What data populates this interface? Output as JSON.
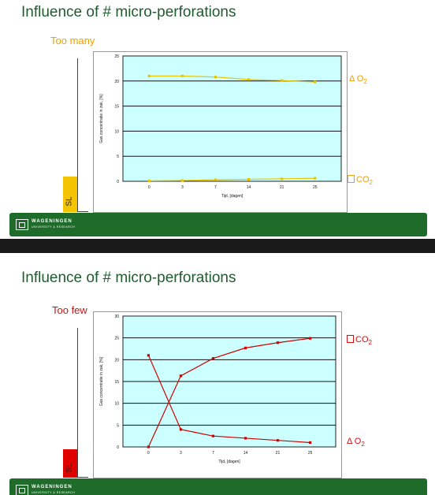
{
  "slides": [
    {
      "title": "Influence of # micro-perforations",
      "subtitle": "Too many",
      "subtitle_color": "#f0a000",
      "sl_label": "SL",
      "sl_color": "#f5c400",
      "right_labels": {
        "top": "Δ O",
        "top_sub": "2",
        "bottom": "CO",
        "bottom_sub": "2"
      },
      "org": "WAGENINGEN",
      "org_sub": "UNIVERSITY & RESEARCH"
    },
    {
      "title": "Influence of # micro-perforations",
      "subtitle": "Too few",
      "subtitle_color": "#d01010",
      "sl_label": "SL",
      "sl_color": "#e00000",
      "right_labels": {
        "top": "CO",
        "top_sub": "2",
        "bottom": "Δ O",
        "bottom_sub": "2"
      },
      "org": "WAGENINGEN",
      "org_sub": "UNIVERSITY & RESEARCH"
    }
  ],
  "chart_data": [
    {
      "type": "line",
      "xlabel": "Tijd, [dagen]",
      "ylabel": "Gas concentratie in zak, [%]",
      "x": [
        0,
        3,
        7,
        14,
        21,
        25
      ],
      "x_ticks": [
        "0",
        "3",
        "7",
        "14",
        "21",
        "25"
      ],
      "ylim": [
        0,
        25
      ],
      "y_ticks": [
        "0",
        "5",
        "10",
        "15",
        "20",
        "25"
      ],
      "color": "#e8c400",
      "grid": true,
      "series": [
        {
          "values": [
            21,
            21,
            20.8,
            20.3,
            20.1,
            19.8
          ]
        },
        {
          "values": [
            0.1,
            0.15,
            0.3,
            0.4,
            0.5,
            0.6
          ]
        }
      ]
    },
    {
      "type": "line",
      "xlabel": "Tijd, [dagen]",
      "ylabel": "Gas concentratie in zak, [%]",
      "x": [
        0,
        3,
        7,
        14,
        21,
        25
      ],
      "x_ticks": [
        "0",
        "3",
        "7",
        "14",
        "21",
        "25"
      ],
      "ylim": [
        0,
        30
      ],
      "y_ticks": [
        "0",
        "5",
        "10",
        "15",
        "20",
        "25",
        "30"
      ],
      "color": "#d00000",
      "grid": true,
      "series": [
        {
          "values": [
            0,
            16.3,
            20.3,
            22.7,
            23.9,
            24.9
          ]
        },
        {
          "values": [
            21,
            4,
            2.5,
            2,
            1.5,
            1
          ]
        }
      ]
    }
  ]
}
